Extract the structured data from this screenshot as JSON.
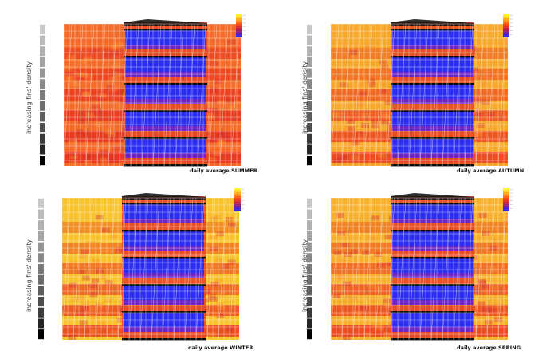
{
  "axis_label": "increasing fins' density",
  "caption_prefix": "daily average ",
  "panels": [
    {
      "id": "summer",
      "season": "SUMMER",
      "base_color": "#f46a28"
    },
    {
      "id": "autumn",
      "season": "AUTUMN",
      "base_color": "#f6a82a"
    },
    {
      "id": "winter",
      "season": "WINTER",
      "base_color": "#f7c22a"
    },
    {
      "id": "spring",
      "season": "SPRING",
      "base_color": "#f6b02c"
    }
  ],
  "density_scale": {
    "steps": 13,
    "colors": [
      "#c8c8c8",
      "#bcbcbc",
      "#b0b0b0",
      "#a3a3a3",
      "#969696",
      "#898989",
      "#7b7b7b",
      "#6d6d6d",
      "#5e5e5e",
      "#4e4e4e",
      "#3b3b3b",
      "#262626",
      "#000000"
    ]
  },
  "legend_colors": [
    "#fff22a",
    "#ffd21f",
    "#ffae1c",
    "#ff8a1a",
    "#ff6a1a",
    "#f24a1e",
    "#dd2f2c",
    "#c21f45",
    "#9d1f6a",
    "#7a21a0",
    "#4f23cf",
    "#2c26f0"
  ],
  "colors": {
    "hot_red": "#e8341e",
    "cold_blue": "#2b2df2",
    "grid_white": "#ffffff",
    "slab_black": "#0a0a0a"
  }
}
